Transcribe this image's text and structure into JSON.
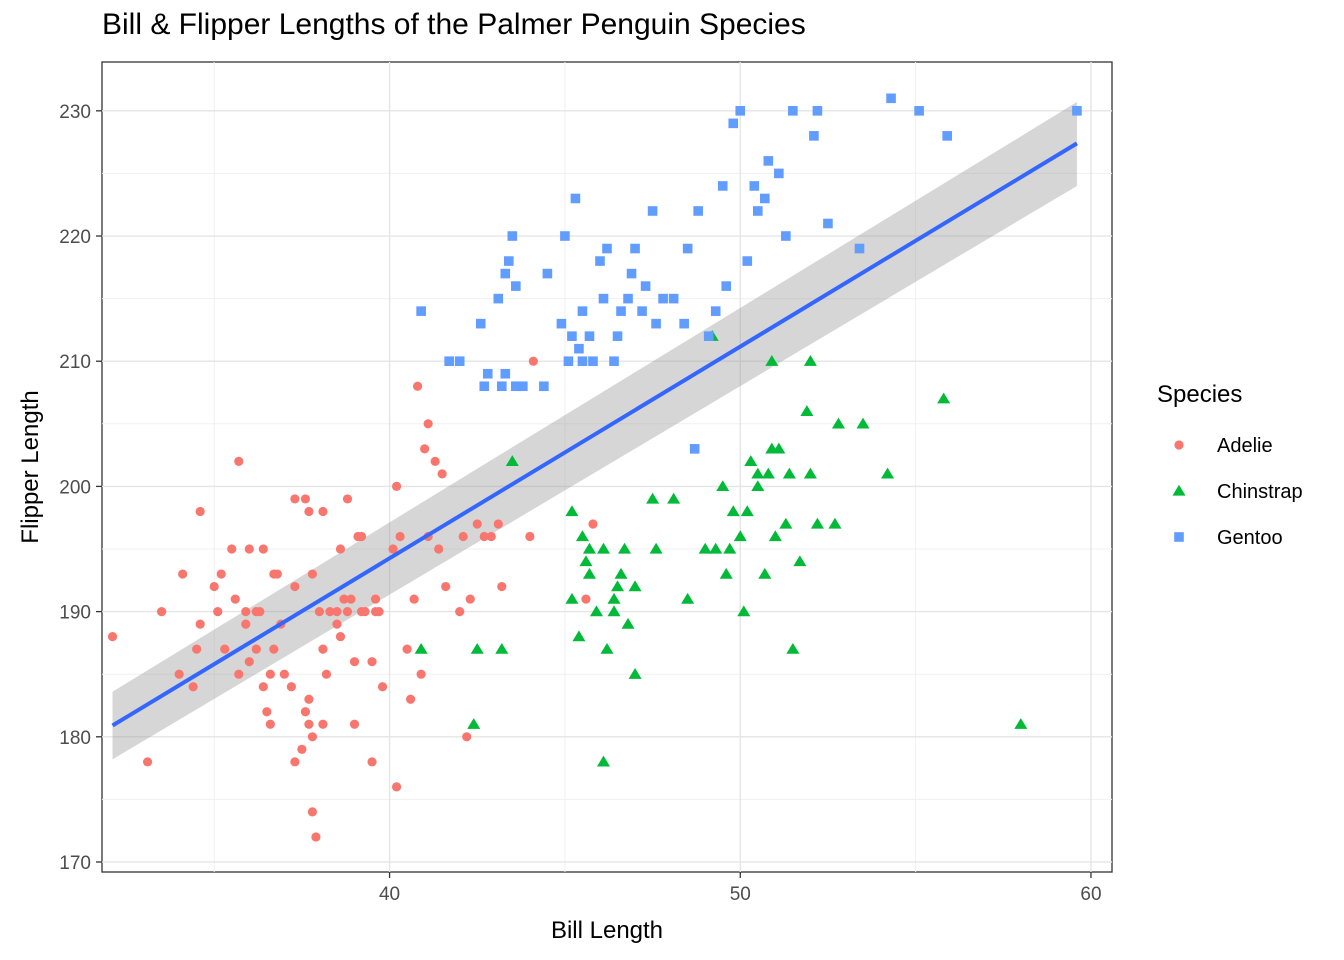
{
  "chart_data": {
    "type": "scatter",
    "title": "Bill & Flipper Lengths of the Palmer Penguin Species",
    "xlabel": "Bill Length",
    "ylabel": "Flipper Length",
    "xlim": [
      31.8,
      60.6
    ],
    "ylim": [
      169.2,
      233.9
    ],
    "xticks": [
      40,
      50,
      60
    ],
    "yticks": [
      170,
      180,
      190,
      200,
      210,
      220,
      230
    ],
    "grid": true,
    "legend": {
      "title": "Species",
      "placement": "right"
    },
    "series": [
      {
        "name": "Adelie",
        "color": "#F8766D",
        "shape": "circle",
        "points": [
          [
            32.1,
            188
          ],
          [
            33.1,
            178
          ],
          [
            33.5,
            190
          ],
          [
            34.0,
            185
          ],
          [
            34.1,
            193
          ],
          [
            34.4,
            184
          ],
          [
            34.5,
            187
          ],
          [
            34.6,
            198
          ],
          [
            34.6,
            189
          ],
          [
            35.0,
            192
          ],
          [
            35.1,
            190
          ],
          [
            35.2,
            193
          ],
          [
            35.3,
            187
          ],
          [
            35.5,
            195
          ],
          [
            35.6,
            191
          ],
          [
            35.7,
            185
          ],
          [
            35.7,
            202
          ],
          [
            35.9,
            190
          ],
          [
            35.9,
            189
          ],
          [
            36.0,
            186
          ],
          [
            36.0,
            195
          ],
          [
            36.2,
            190
          ],
          [
            36.2,
            187
          ],
          [
            36.3,
            190
          ],
          [
            36.4,
            184
          ],
          [
            36.4,
            195
          ],
          [
            36.5,
            182
          ],
          [
            36.6,
            185
          ],
          [
            36.6,
            181
          ],
          [
            36.7,
            187
          ],
          [
            36.7,
            193
          ],
          [
            36.8,
            193
          ],
          [
            36.9,
            189
          ],
          [
            37.0,
            185
          ],
          [
            37.2,
            184
          ],
          [
            37.3,
            178
          ],
          [
            37.3,
            192
          ],
          [
            37.3,
            199
          ],
          [
            37.5,
            179
          ],
          [
            37.6,
            182
          ],
          [
            37.6,
            199
          ],
          [
            37.7,
            183
          ],
          [
            37.7,
            181
          ],
          [
            37.7,
            198
          ],
          [
            37.8,
            180
          ],
          [
            37.8,
            174
          ],
          [
            37.9,
            172
          ],
          [
            37.8,
            193
          ],
          [
            38.0,
            190
          ],
          [
            38.1,
            181
          ],
          [
            38.1,
            198
          ],
          [
            38.1,
            187
          ],
          [
            38.2,
            185
          ],
          [
            38.3,
            190
          ],
          [
            38.5,
            189
          ],
          [
            38.5,
            190
          ],
          [
            38.6,
            188
          ],
          [
            38.6,
            195
          ],
          [
            38.7,
            191
          ],
          [
            38.8,
            199
          ],
          [
            38.8,
            190
          ],
          [
            38.9,
            191
          ],
          [
            39.0,
            186
          ],
          [
            39.0,
            181
          ],
          [
            39.1,
            196
          ],
          [
            39.2,
            190
          ],
          [
            39.2,
            196
          ],
          [
            39.3,
            190
          ],
          [
            39.5,
            186
          ],
          [
            39.5,
            178
          ],
          [
            39.6,
            190
          ],
          [
            39.6,
            191
          ],
          [
            39.7,
            190
          ],
          [
            39.8,
            184
          ],
          [
            40.1,
            195
          ],
          [
            40.2,
            200
          ],
          [
            40.2,
            176
          ],
          [
            40.3,
            196
          ],
          [
            40.5,
            187
          ],
          [
            40.6,
            183
          ],
          [
            40.7,
            191
          ],
          [
            40.8,
            208
          ],
          [
            40.9,
            185
          ],
          [
            41.0,
            203
          ],
          [
            41.1,
            205
          ],
          [
            41.1,
            196
          ],
          [
            41.3,
            202
          ],
          [
            41.4,
            195
          ],
          [
            41.5,
            201
          ],
          [
            41.6,
            192
          ],
          [
            42.0,
            190
          ],
          [
            42.1,
            196
          ],
          [
            42.2,
            180
          ],
          [
            42.3,
            191
          ],
          [
            42.5,
            197
          ],
          [
            42.7,
            196
          ],
          [
            42.9,
            196
          ],
          [
            43.1,
            197
          ],
          [
            43.2,
            192
          ],
          [
            44.0,
            196
          ],
          [
            44.1,
            210
          ],
          [
            45.6,
            191
          ],
          [
            45.8,
            197
          ]
        ]
      },
      {
        "name": "Chinstrap",
        "color": "#00BA38",
        "shape": "triangle",
        "points": [
          [
            40.9,
            187
          ],
          [
            42.4,
            181
          ],
          [
            42.5,
            187
          ],
          [
            43.2,
            187
          ],
          [
            43.5,
            202
          ],
          [
            45.2,
            191
          ],
          [
            45.2,
            198
          ],
          [
            45.4,
            188
          ],
          [
            45.5,
            196
          ],
          [
            45.6,
            194
          ],
          [
            45.7,
            195
          ],
          [
            45.7,
            193
          ],
          [
            45.9,
            190
          ],
          [
            46.1,
            178
          ],
          [
            46.1,
            195
          ],
          [
            46.2,
            187
          ],
          [
            46.4,
            190
          ],
          [
            46.4,
            191
          ],
          [
            46.5,
            192
          ],
          [
            46.6,
            193
          ],
          [
            46.7,
            195
          ],
          [
            46.8,
            189
          ],
          [
            47.0,
            192
          ],
          [
            47.0,
            185
          ],
          [
            47.5,
            199
          ],
          [
            47.6,
            195
          ],
          [
            48.1,
            199
          ],
          [
            48.5,
            191
          ],
          [
            49.0,
            195
          ],
          [
            49.2,
            212
          ],
          [
            49.3,
            195
          ],
          [
            49.5,
            200
          ],
          [
            49.6,
            193
          ],
          [
            49.7,
            195
          ],
          [
            49.8,
            198
          ],
          [
            50.0,
            196
          ],
          [
            50.1,
            190
          ],
          [
            50.2,
            198
          ],
          [
            50.3,
            202
          ],
          [
            50.5,
            201
          ],
          [
            50.5,
            200
          ],
          [
            50.7,
            193
          ],
          [
            50.8,
            201
          ],
          [
            50.9,
            203
          ],
          [
            50.9,
            210
          ],
          [
            51.0,
            196
          ],
          [
            51.1,
            203
          ],
          [
            51.3,
            197
          ],
          [
            51.4,
            201
          ],
          [
            51.5,
            187
          ],
          [
            51.7,
            194
          ],
          [
            51.9,
            206
          ],
          [
            52.0,
            210
          ],
          [
            52.0,
            201
          ],
          [
            52.2,
            197
          ],
          [
            52.7,
            197
          ],
          [
            52.8,
            205
          ],
          [
            53.5,
            205
          ],
          [
            54.2,
            201
          ],
          [
            55.8,
            207
          ],
          [
            58.0,
            181
          ]
        ]
      },
      {
        "name": "Gentoo",
        "color": "#619CFF",
        "shape": "square",
        "points": [
          [
            40.9,
            214
          ],
          [
            41.7,
            210
          ],
          [
            42.0,
            210
          ],
          [
            42.7,
            208
          ],
          [
            42.8,
            209
          ],
          [
            43.2,
            208
          ],
          [
            43.3,
            209
          ],
          [
            43.6,
            208
          ],
          [
            43.8,
            208
          ],
          [
            42.6,
            213
          ],
          [
            43.1,
            215
          ],
          [
            43.3,
            217
          ],
          [
            43.4,
            218
          ],
          [
            43.5,
            220
          ],
          [
            43.6,
            216
          ],
          [
            44.4,
            208
          ],
          [
            44.5,
            217
          ],
          [
            44.9,
            213
          ],
          [
            45.0,
            220
          ],
          [
            45.1,
            210
          ],
          [
            45.2,
            212
          ],
          [
            45.3,
            223
          ],
          [
            45.4,
            211
          ],
          [
            45.5,
            210
          ],
          [
            45.5,
            214
          ],
          [
            45.7,
            212
          ],
          [
            45.8,
            210
          ],
          [
            46.0,
            218
          ],
          [
            46.1,
            215
          ],
          [
            46.2,
            219
          ],
          [
            46.4,
            210
          ],
          [
            46.5,
            212
          ],
          [
            46.6,
            214
          ],
          [
            46.8,
            215
          ],
          [
            46.9,
            217
          ],
          [
            47.0,
            219
          ],
          [
            47.2,
            214
          ],
          [
            47.3,
            216
          ],
          [
            47.5,
            222
          ],
          [
            47.6,
            213
          ],
          [
            47.8,
            215
          ],
          [
            48.1,
            215
          ],
          [
            48.4,
            213
          ],
          [
            48.5,
            219
          ],
          [
            48.7,
            203
          ],
          [
            48.8,
            222
          ],
          [
            49.1,
            212
          ],
          [
            49.3,
            214
          ],
          [
            49.5,
            224
          ],
          [
            49.6,
            216
          ],
          [
            49.8,
            229
          ],
          [
            50.0,
            230
          ],
          [
            50.2,
            218
          ],
          [
            50.4,
            224
          ],
          [
            50.5,
            222
          ],
          [
            50.7,
            223
          ],
          [
            50.8,
            226
          ],
          [
            51.1,
            225
          ],
          [
            51.3,
            220
          ],
          [
            51.5,
            230
          ],
          [
            52.1,
            228
          ],
          [
            52.2,
            230
          ],
          [
            52.5,
            221
          ],
          [
            53.4,
            219
          ],
          [
            54.3,
            231
          ],
          [
            55.1,
            230
          ],
          [
            55.9,
            228
          ],
          [
            59.6,
            230
          ]
        ]
      }
    ],
    "trend": {
      "x": [
        32.1,
        59.6
      ],
      "y": [
        180.9,
        227.4
      ],
      "band_low": [
        178.2,
        224.0
      ],
      "band_high": [
        183.6,
        230.7
      ]
    }
  }
}
